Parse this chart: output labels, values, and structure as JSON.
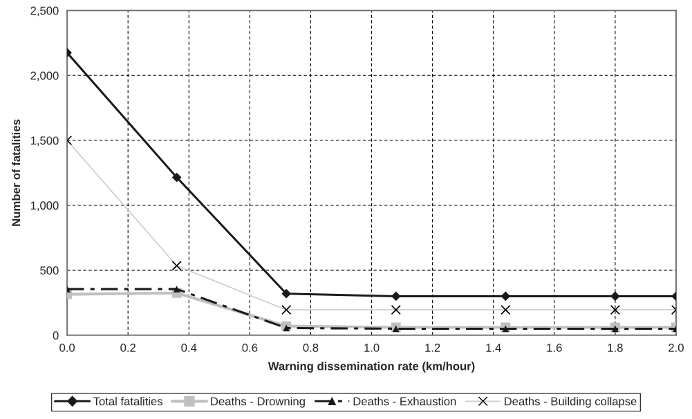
{
  "chart_data": {
    "type": "line",
    "xlabel": "Warning dissemination rate (km/hour)",
    "ylabel": "Number of fatalities",
    "x": [
      0,
      0.36,
      0.72,
      1.08,
      1.44,
      1.8,
      2.0
    ],
    "xlim": [
      0,
      2.0
    ],
    "xticks": [
      {
        "value": 0,
        "label": "0.0"
      },
      {
        "value": 0.2,
        "label": "0.2"
      },
      {
        "value": 0.4,
        "label": "0.4"
      },
      {
        "value": 0.6,
        "label": "0.6"
      },
      {
        "value": 0.8,
        "label": "0.8"
      },
      {
        "value": 1.0,
        "label": "1.0"
      },
      {
        "value": 1.2,
        "label": "1.2"
      },
      {
        "value": 1.4,
        "label": "1.4"
      },
      {
        "value": 1.6,
        "label": "1.6"
      },
      {
        "value": 1.8,
        "label": "1.8"
      },
      {
        "value": 2.0,
        "label": "2.0"
      }
    ],
    "ylim": [
      0,
      2500
    ],
    "yticks": [
      0,
      500,
      {
        "value": 1000,
        "label": "1,000"
      },
      {
        "value": 1500,
        "label": "1,500"
      },
      {
        "value": 2000,
        "label": "2,000"
      },
      {
        "value": 2500,
        "label": "2,500"
      }
    ],
    "grid": true,
    "legend": "bottom",
    "series": [
      {
        "name": "Total fatalities",
        "color": "#1a1a1a",
        "marker": "diamond",
        "line_style": "solid",
        "values": [
          2175,
          1215,
          320,
          300,
          300,
          300,
          300
        ]
      },
      {
        "name": "Deaths - Drowning",
        "color": "#c0c0c0",
        "marker": "square",
        "line_style": "solid",
        "values": [
          315,
          325,
          70,
          60,
          60,
          60,
          60
        ]
      },
      {
        "name": "Deaths - Exhaustion",
        "color": "#1a1a1a",
        "marker": "triangle",
        "line_style": "dashed",
        "values": [
          355,
          355,
          55,
          50,
          50,
          50,
          50
        ]
      },
      {
        "name": "Deaths - Building collapse",
        "color": "#cccccc",
        "marker": "cross",
        "line_style": "solid",
        "values": [
          1500,
          535,
          195,
          195,
          195,
          195,
          195
        ]
      }
    ]
  }
}
